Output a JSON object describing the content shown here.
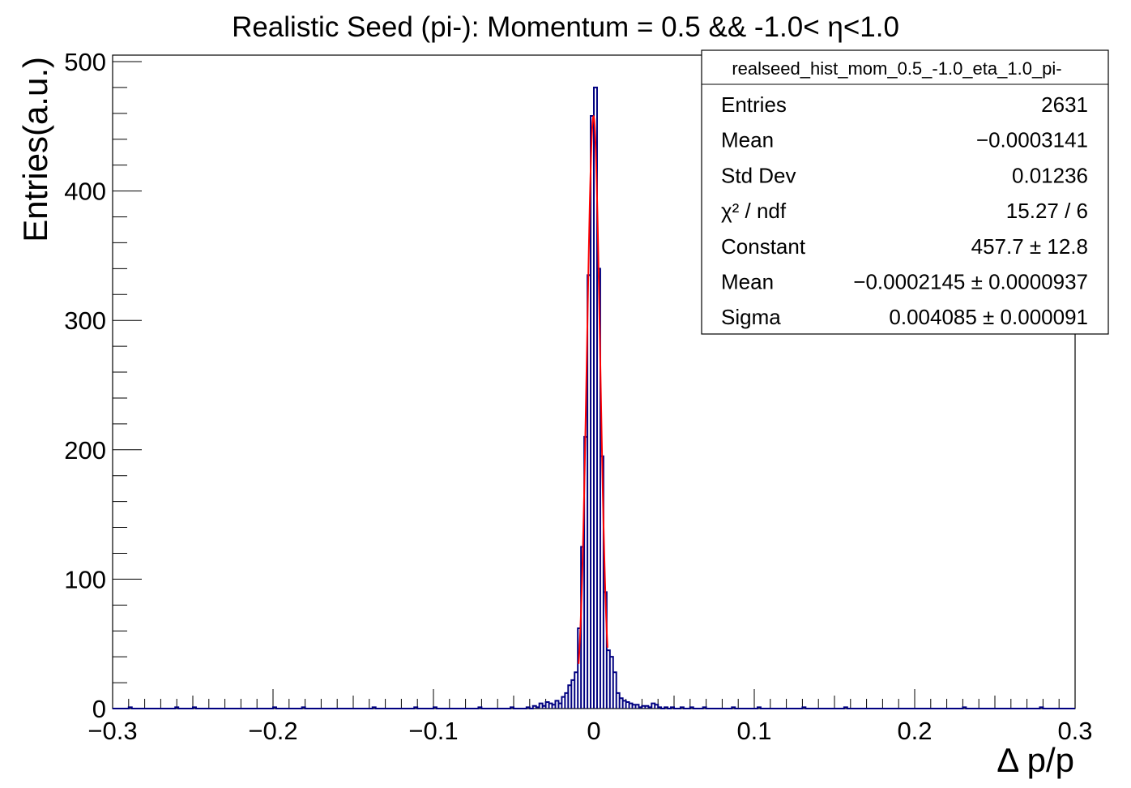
{
  "chart_data": {
    "type": "histogram",
    "title": "Realistic Seed (pi-): Momentum = 0.5 && -1.0<  η<1.0",
    "xlabel": "Δ p/p",
    "ylabel": "Entries(a.u.)",
    "xlim": [
      -0.3,
      0.3
    ],
    "ylim": [
      0,
      505
    ],
    "x_ticks": [
      -0.3,
      -0.2,
      -0.1,
      0,
      0.1,
      0.2,
      0.3
    ],
    "x_tick_labels": [
      "−0.3",
      "−0.2",
      "−0.1",
      "0",
      "0.1",
      "0.2",
      "0.3"
    ],
    "y_ticks": [
      0,
      100,
      200,
      300,
      400,
      500
    ],
    "y_tick_labels": [
      "0",
      "100",
      "200",
      "300",
      "400",
      "500"
    ],
    "grid": false,
    "histogram": {
      "color": "#000080",
      "bin_width": 0.002,
      "bins": [
        [
          -0.289,
          1
        ],
        [
          -0.26,
          1
        ],
        [
          -0.249,
          1
        ],
        [
          -0.199,
          1
        ],
        [
          -0.181,
          1
        ],
        [
          -0.137,
          1
        ],
        [
          -0.111,
          1
        ],
        [
          -0.099,
          1
        ],
        [
          -0.071,
          1
        ],
        [
          -0.051,
          1
        ],
        [
          -0.041,
          1
        ],
        [
          -0.037,
          2
        ],
        [
          -0.035,
          1
        ],
        [
          -0.033,
          4
        ],
        [
          -0.031,
          2
        ],
        [
          -0.029,
          5
        ],
        [
          -0.027,
          4
        ],
        [
          -0.025,
          3
        ],
        [
          -0.023,
          6
        ],
        [
          -0.021,
          4
        ],
        [
          -0.019,
          9
        ],
        [
          -0.017,
          12
        ],
        [
          -0.015,
          18
        ],
        [
          -0.013,
          22
        ],
        [
          -0.011,
          28
        ],
        [
          -0.009,
          62
        ],
        [
          -0.007,
          125
        ],
        [
          -0.005,
          210
        ],
        [
          -0.003,
          335
        ],
        [
          -0.001,
          458
        ],
        [
          0.001,
          480
        ],
        [
          0.003,
          340
        ],
        [
          0.005,
          195
        ],
        [
          0.007,
          90
        ],
        [
          0.009,
          45
        ],
        [
          0.011,
          40
        ],
        [
          0.013,
          28
        ],
        [
          0.015,
          12
        ],
        [
          0.017,
          8
        ],
        [
          0.019,
          6
        ],
        [
          0.021,
          5
        ],
        [
          0.023,
          4
        ],
        [
          0.025,
          3
        ],
        [
          0.027,
          3
        ],
        [
          0.029,
          1
        ],
        [
          0.031,
          2
        ],
        [
          0.033,
          2
        ],
        [
          0.035,
          1
        ],
        [
          0.037,
          4
        ],
        [
          0.039,
          3
        ],
        [
          0.041,
          1
        ],
        [
          0.045,
          1
        ],
        [
          0.049,
          1
        ],
        [
          0.055,
          1
        ],
        [
          0.061,
          1
        ],
        [
          0.069,
          1
        ],
        [
          0.087,
          1
        ],
        [
          0.103,
          1
        ],
        [
          0.131,
          1
        ],
        [
          0.157,
          1
        ],
        [
          0.231,
          1
        ],
        [
          0.279,
          1
        ]
      ]
    },
    "fit": {
      "function": "gaus",
      "color": "#ff0000",
      "constant": 457.7,
      "mean": -0.0002145,
      "sigma": 0.004085,
      "range": [
        -0.0095,
        0.0085
      ]
    },
    "stats_box": {
      "name": "realseed_hist_mom_0.5_-1.0_eta_1.0_pi-",
      "rows": [
        {
          "label": "Entries",
          "value": "2631"
        },
        {
          "label": "Mean",
          "value": "−0.0003141"
        },
        {
          "label": "Std Dev",
          "value": "0.01236"
        },
        {
          "label": "χ² / ndf",
          "value": "15.27 / 6"
        },
        {
          "label": "Constant",
          "value": "457.7 ± 12.8"
        },
        {
          "label": "Mean",
          "value": "−0.0002145 ± 0.0000937"
        },
        {
          "label": "Sigma",
          "value": "0.004085 ± 0.000091"
        }
      ]
    }
  }
}
